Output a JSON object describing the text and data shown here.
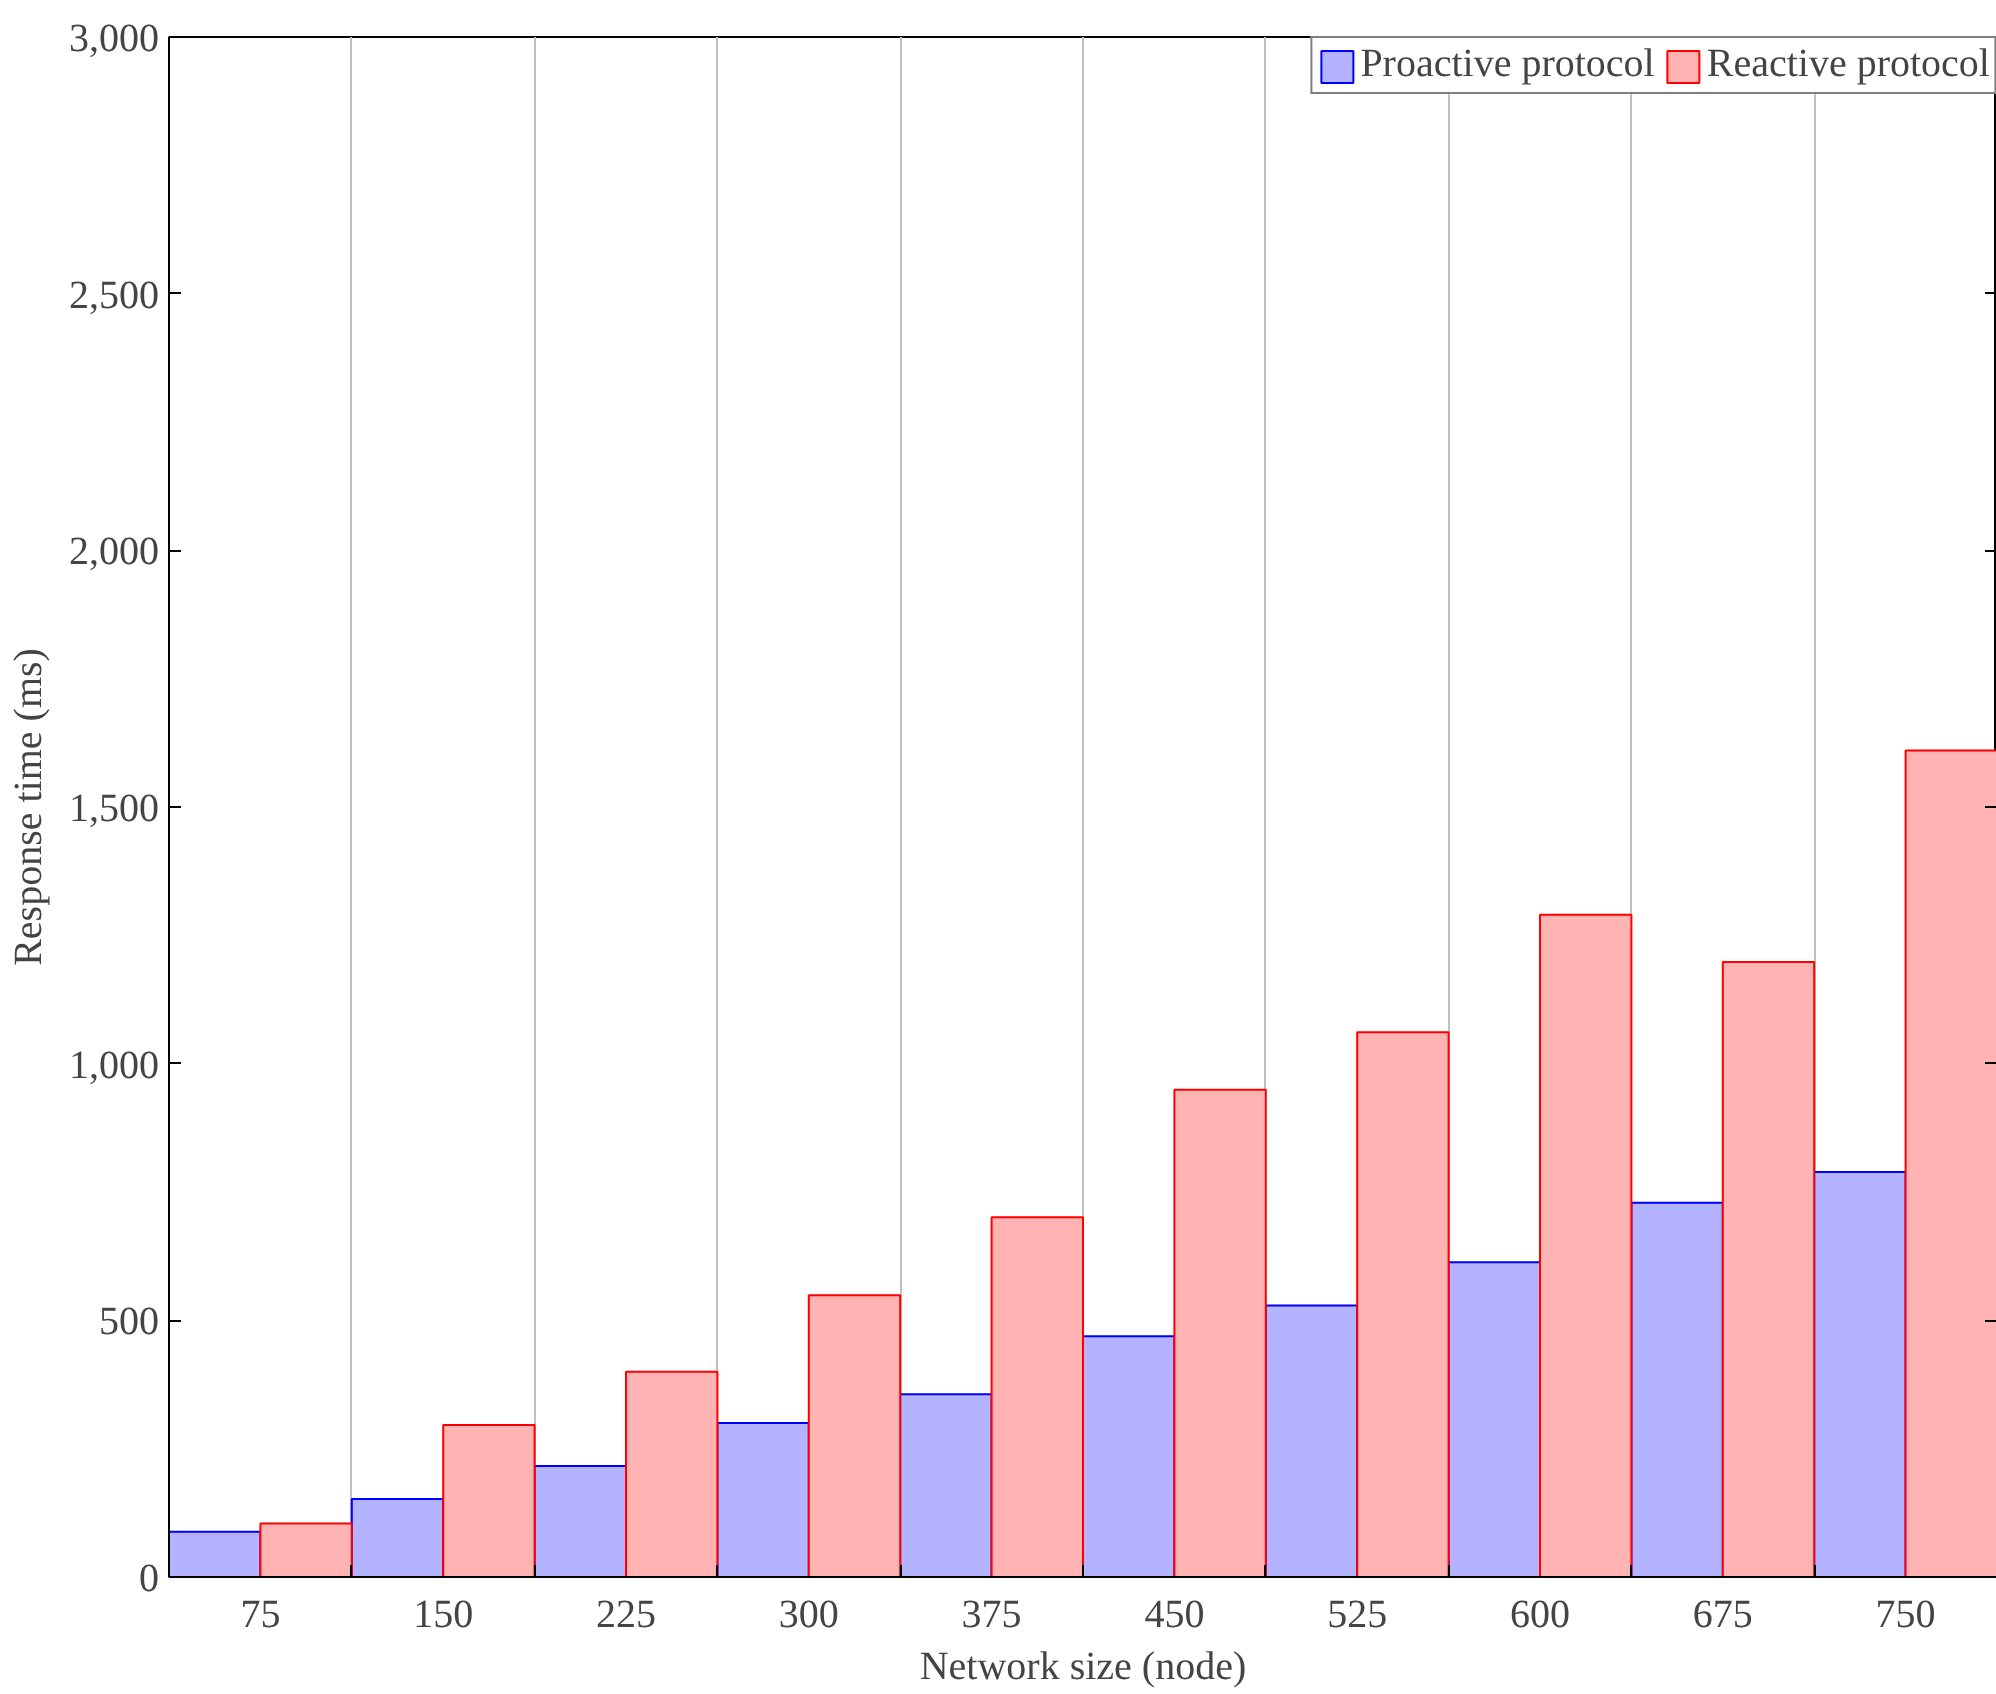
{
  "chart_data": {
    "type": "bar",
    "xlabel": "Network size (node)",
    "ylabel": "Response time (ms)",
    "categories": [
      "75",
      "150",
      "225",
      "300",
      "375",
      "450",
      "525",
      "600",
      "675",
      "750"
    ],
    "series": [
      {
        "name": "Proactive protocol",
        "color": "#b3b3ff",
        "values": [
          88,
          152,
          216,
          300,
          356,
          469,
          529,
          613,
          729,
          789
        ]
      },
      {
        "name": "Reactive protocol",
        "color": "#ffb3b3",
        "values": [
          104,
          296,
          400,
          549,
          701,
          949,
          1061,
          1290,
          1198,
          1610
        ]
      }
    ],
    "ylim": [
      0,
      3000
    ],
    "yticks": [
      0,
      {
        "value": 500,
        "label": "500"
      },
      {
        "value": 1000,
        "label": "1,000"
      },
      {
        "value": 1500,
        "label": "1,500"
      },
      {
        "value": 2000,
        "label": "2,000"
      },
      {
        "value": 2500,
        "label": "2,500"
      },
      {
        "value": 3000,
        "label": "3,000"
      }
    ],
    "grid": "x",
    "legend": "top right"
  }
}
